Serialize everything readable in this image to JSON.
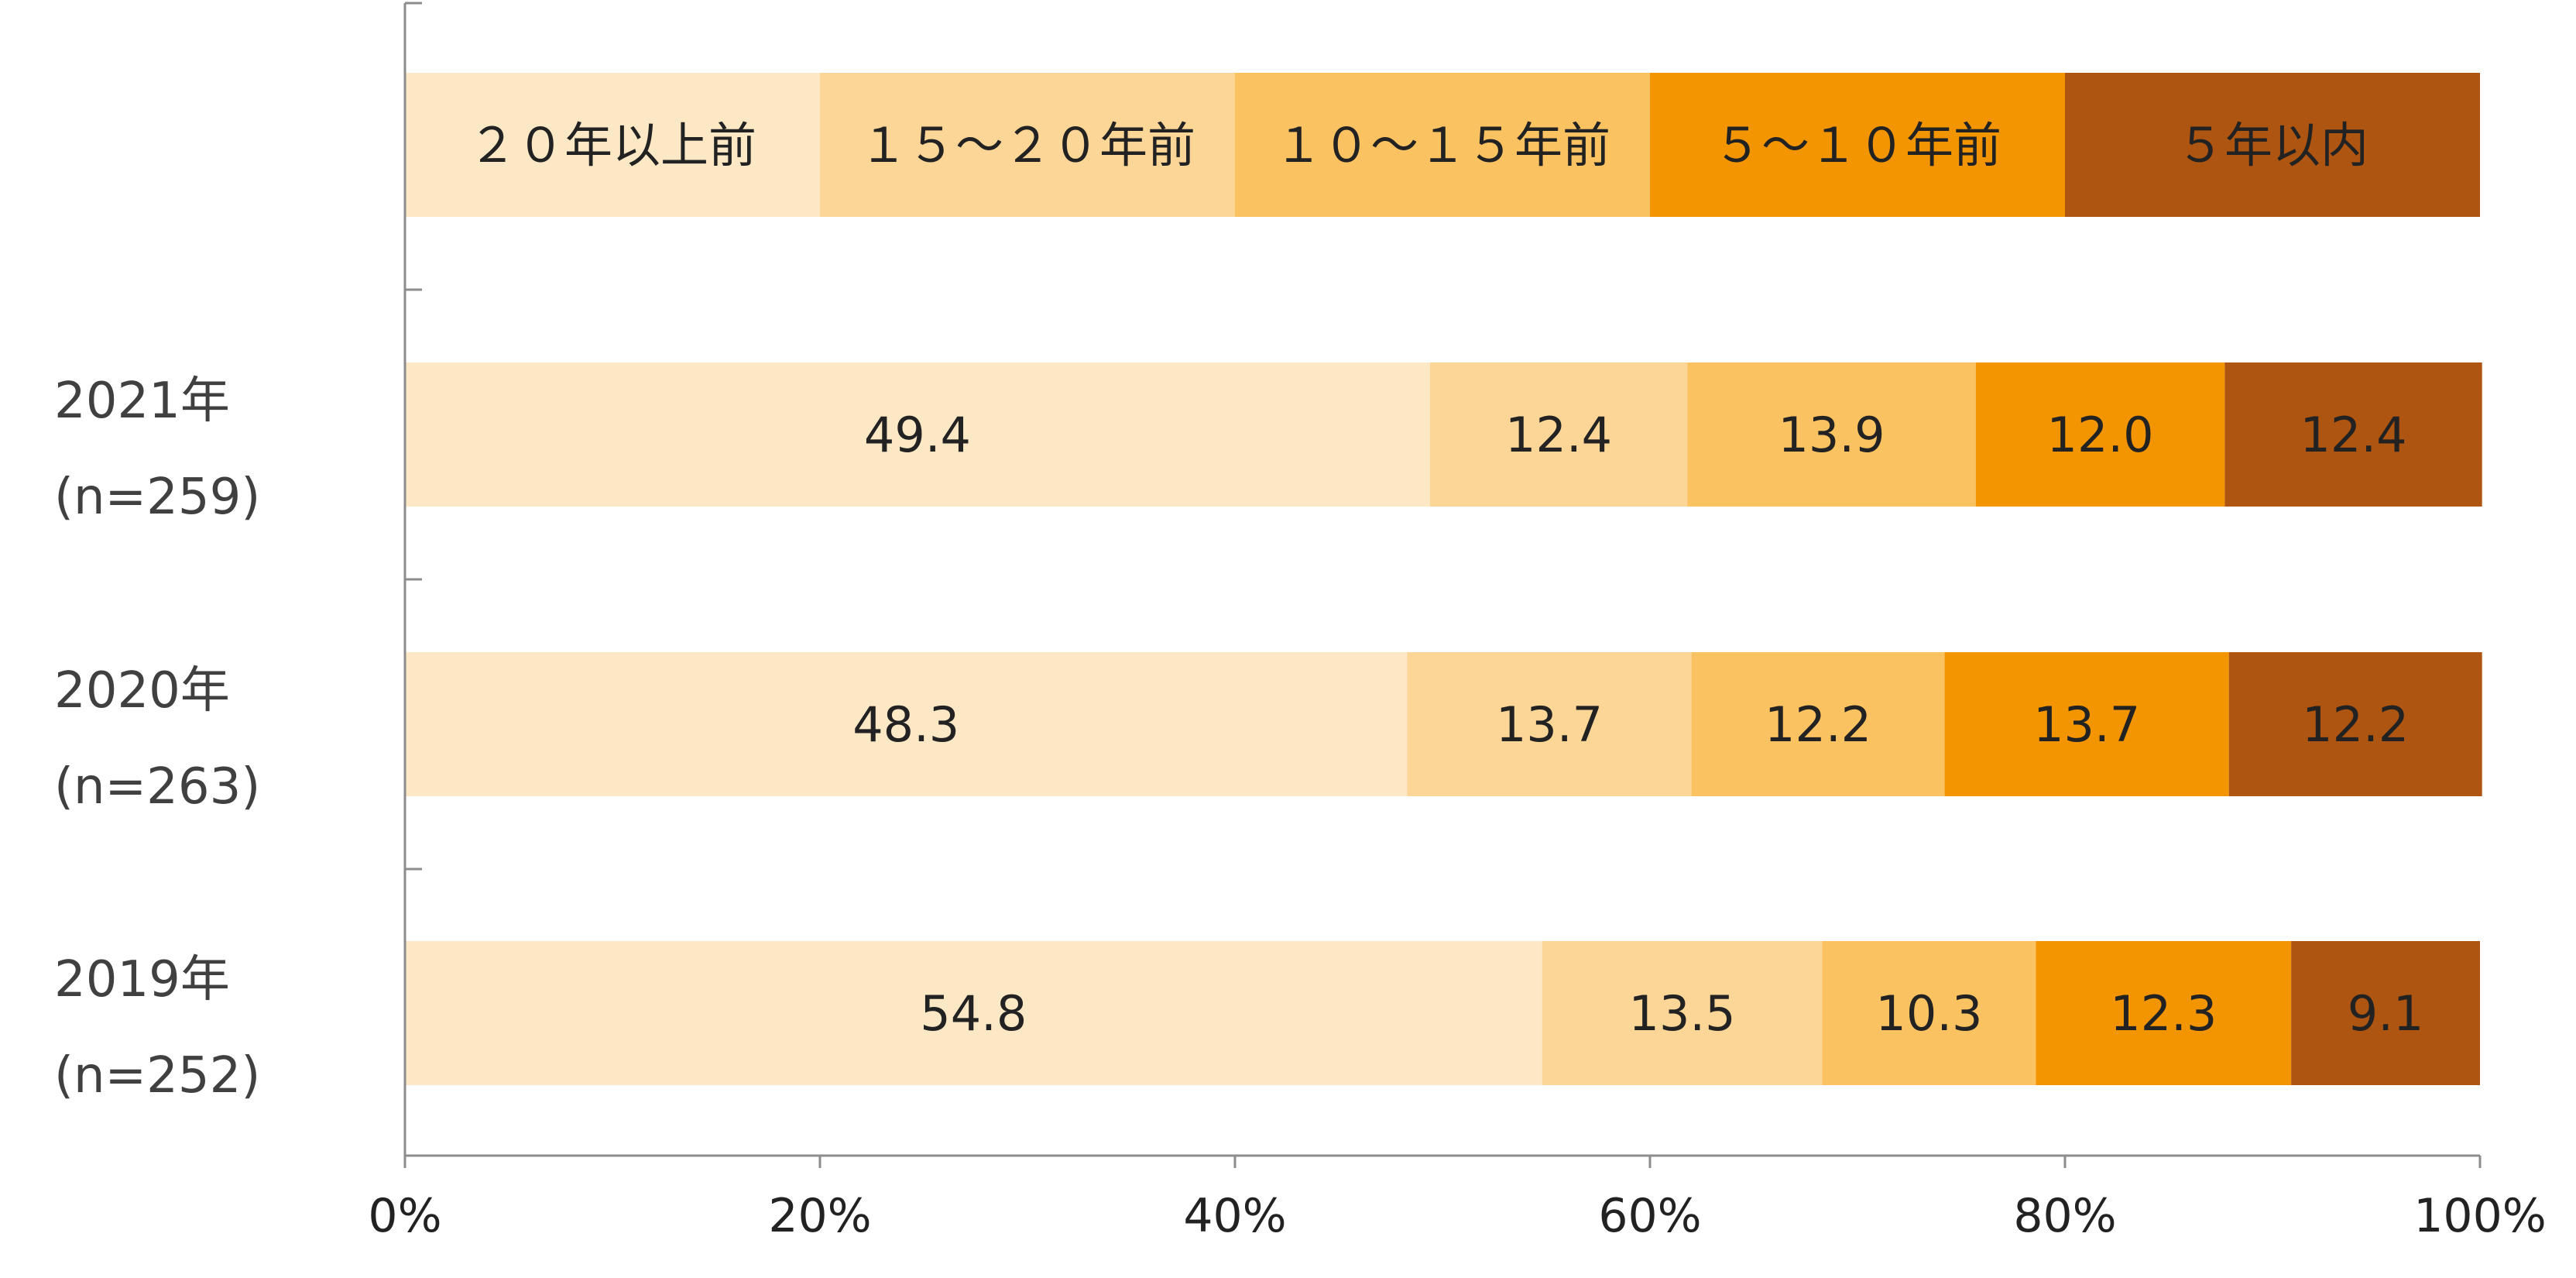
{
  "chart_data": {
    "type": "bar",
    "orientation": "horizontal",
    "stacked": true,
    "percent": true,
    "legend_row": {
      "labels": [
        "２０年以上前",
        "１５～２０年前",
        "１０～１５年前",
        "５～１０年前",
        "５年以内"
      ],
      "values": [
        20,
        20,
        20,
        20,
        20
      ]
    },
    "categories": [
      {
        "line1": "2021年",
        "line2": "(n=259)"
      },
      {
        "line1": "2020年",
        "line2": "(n=263)"
      },
      {
        "line1": "2019年",
        "line2": "(n=252)"
      }
    ],
    "series": [
      {
        "name": "２０年以上前",
        "color": "#FDE8C6",
        "values": [
          49.4,
          48.3,
          54.8
        ]
      },
      {
        "name": "１５～２０年前",
        "color": "#FCD697",
        "values": [
          12.4,
          13.7,
          13.5
        ]
      },
      {
        "name": "１０～１５年前",
        "color": "#FBC262",
        "values": [
          13.9,
          12.2,
          10.3
        ]
      },
      {
        "name": "５～１０年前",
        "color": "#F29500",
        "values": [
          12.0,
          13.7,
          12.3
        ]
      },
      {
        "name": "５年以内",
        "color": "#AF5512",
        "values": [
          12.4,
          12.2,
          9.1
        ]
      }
    ],
    "xaxis": {
      "range": [
        0,
        100
      ],
      "ticks": [
        0,
        20,
        40,
        60,
        80,
        100
      ],
      "tick_labels": [
        "0%",
        "20%",
        "40%",
        "60%",
        "80%",
        "100%"
      ]
    },
    "grid": false,
    "legend_position": "top",
    "title": "",
    "xlabel": "",
    "ylabel": ""
  }
}
